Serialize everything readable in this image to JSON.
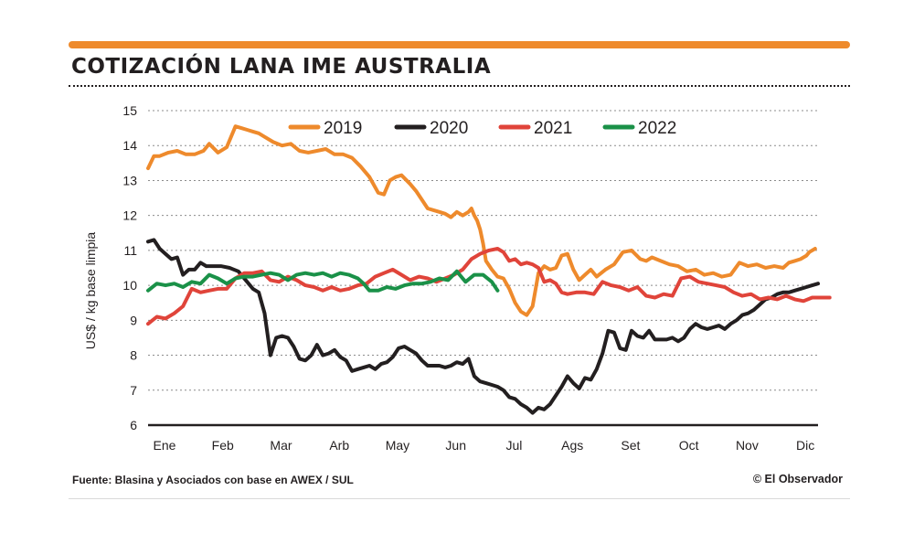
{
  "header": {
    "title": "COTIZACIÓN LANA IME AUSTRALIA",
    "accent_color": "#ee8a2c"
  },
  "footer": {
    "source": "Fuente: Blasina y Asociados con base en AWEX / SUL",
    "credit": "© El Observador"
  },
  "chart_data": {
    "type": "line",
    "title": "COTIZACIÓN LANA IME AUSTRALIA",
    "ylabel": "US$ / kg base limpia",
    "xlabel": "",
    "ylim": [
      6,
      15
    ],
    "xlim": [
      0,
      12
    ],
    "yticks": [
      6,
      7,
      8,
      9,
      10,
      11,
      12,
      13,
      14,
      15
    ],
    "grid": "horizontal dotted",
    "legend_position": "top",
    "categories": [
      "Ene",
      "Feb",
      "Mar",
      "Arb",
      "May",
      "Jun",
      "Jul",
      "Ags",
      "Set",
      "Oct",
      "Nov",
      "Dic"
    ],
    "series": [
      {
        "name": "2019",
        "color": "#ee8a2c",
        "x": [
          0.0,
          0.1,
          0.2,
          0.35,
          0.5,
          0.65,
          0.8,
          0.95,
          1.05,
          1.2,
          1.35,
          1.5,
          1.6,
          1.7,
          1.8,
          1.9,
          2.0,
          2.15,
          2.3,
          2.45,
          2.6,
          2.75,
          2.9,
          3.05,
          3.2,
          3.35,
          3.5,
          3.65,
          3.8,
          3.95,
          4.05,
          4.15,
          4.25,
          4.35,
          4.5,
          4.6,
          4.7,
          4.8,
          4.9,
          5.0,
          5.1,
          5.2,
          5.3,
          5.4,
          5.5,
          5.55,
          5.6,
          5.65,
          5.7,
          5.75,
          5.8,
          5.9,
          6.0,
          6.1,
          6.2,
          6.3,
          6.4,
          6.5,
          6.6,
          6.7,
          6.8,
          6.9,
          7.0,
          7.1,
          7.2,
          7.3,
          7.4,
          7.5,
          7.6,
          7.7,
          7.85,
          8.0,
          8.15,
          8.3,
          8.45,
          8.55,
          8.65,
          8.8,
          8.95,
          9.1,
          9.25,
          9.4,
          9.55,
          9.7,
          9.85,
          10.0,
          10.15,
          10.3,
          10.45,
          10.6,
          10.75,
          10.9,
          11.0,
          11.1,
          11.2,
          11.3,
          11.35,
          11.45
        ],
        "values": [
          13.35,
          13.7,
          13.7,
          13.8,
          13.85,
          13.75,
          13.75,
          13.85,
          14.05,
          13.8,
          13.95,
          14.55,
          14.5,
          14.45,
          14.4,
          14.35,
          14.25,
          14.1,
          14.0,
          14.05,
          13.85,
          13.8,
          13.85,
          13.9,
          13.75,
          13.75,
          13.65,
          13.4,
          13.1,
          12.65,
          12.6,
          13.0,
          13.1,
          13.15,
          12.9,
          12.7,
          12.45,
          12.2,
          12.15,
          12.1,
          12.05,
          11.95,
          12.1,
          12.0,
          12.1,
          12.2,
          12.0,
          11.85,
          11.6,
          11.2,
          10.7,
          10.45,
          10.25,
          10.2,
          9.9,
          9.5,
          9.25,
          9.15,
          9.4,
          10.35,
          10.55,
          10.45,
          10.5,
          10.85,
          10.9,
          10.45,
          10.15,
          10.3,
          10.45,
          10.25,
          10.45,
          10.6,
          10.95,
          11.0,
          10.75,
          10.7,
          10.8,
          10.7,
          10.6,
          10.55,
          10.4,
          10.45,
          10.3,
          10.35,
          10.25,
          10.3,
          10.65,
          10.55,
          10.6,
          10.5,
          10.55,
          10.5,
          10.65,
          10.7,
          10.75,
          10.85,
          10.95,
          11.05
        ]
      },
      {
        "name": "2020",
        "color": "#231f20",
        "x": [
          0.0,
          0.1,
          0.2,
          0.3,
          0.4,
          0.5,
          0.6,
          0.7,
          0.8,
          0.9,
          1.0,
          1.1,
          1.25,
          1.4,
          1.55,
          1.7,
          1.8,
          1.9,
          2.0,
          2.1,
          2.2,
          2.3,
          2.4,
          2.5,
          2.6,
          2.7,
          2.8,
          2.9,
          3.0,
          3.1,
          3.2,
          3.3,
          3.4,
          3.5,
          3.6,
          3.7,
          3.8,
          3.9,
          4.0,
          4.1,
          4.2,
          4.3,
          4.4,
          4.5,
          4.6,
          4.7,
          4.8,
          4.9,
          5.0,
          5.1,
          5.2,
          5.3,
          5.4,
          5.5,
          5.6,
          5.7,
          5.8,
          5.9,
          6.0,
          6.1,
          6.2,
          6.3,
          6.4,
          6.5,
          6.6,
          6.7,
          6.8,
          6.9,
          7.0,
          7.1,
          7.2,
          7.3,
          7.4,
          7.5,
          7.6,
          7.7,
          7.8,
          7.9,
          8.0,
          8.1,
          8.2,
          8.3,
          8.4,
          8.5,
          8.6,
          8.7,
          8.8,
          8.9,
          9.0,
          9.1,
          9.2,
          9.3,
          9.4,
          9.5,
          9.6,
          9.7,
          9.8,
          9.9,
          10.0,
          10.1,
          10.2,
          10.3,
          10.4,
          10.5,
          10.6,
          10.7,
          10.8,
          10.9,
          11.0,
          11.1,
          11.2,
          11.3,
          11.4,
          11.5
        ],
        "values": [
          11.25,
          11.3,
          11.05,
          10.9,
          10.75,
          10.8,
          10.3,
          10.45,
          10.45,
          10.65,
          10.55,
          10.55,
          10.55,
          10.5,
          10.4,
          10.1,
          9.9,
          9.8,
          9.2,
          8.0,
          8.5,
          8.55,
          8.5,
          8.25,
          7.9,
          7.85,
          8.0,
          8.3,
          8.0,
          8.05,
          8.15,
          7.95,
          7.85,
          7.55,
          7.6,
          7.65,
          7.7,
          7.6,
          7.75,
          7.8,
          7.95,
          8.2,
          8.25,
          8.15,
          8.05,
          7.85,
          7.7,
          7.7,
          7.7,
          7.65,
          7.7,
          7.8,
          7.75,
          7.9,
          7.4,
          7.25,
          7.2,
          7.15,
          7.1,
          7.0,
          6.8,
          6.75,
          6.6,
          6.5,
          6.35,
          6.5,
          6.45,
          6.6,
          6.85,
          7.1,
          7.4,
          7.2,
          7.05,
          7.35,
          7.3,
          7.6,
          8.05,
          8.7,
          8.65,
          8.2,
          8.15,
          8.7,
          8.55,
          8.5,
          8.7,
          8.45,
          8.45,
          8.45,
          8.5,
          8.4,
          8.5,
          8.75,
          8.9,
          8.8,
          8.75,
          8.8,
          8.85,
          8.75,
          8.9,
          9.0,
          9.15,
          9.2,
          9.3,
          9.45,
          9.6,
          9.65,
          9.75,
          9.8,
          9.8,
          9.85,
          9.9,
          9.95,
          10.0,
          10.05
        ]
      },
      {
        "name": "2021",
        "color": "#e0443a",
        "x": [
          0.0,
          0.15,
          0.3,
          0.45,
          0.6,
          0.75,
          0.9,
          1.05,
          1.2,
          1.35,
          1.5,
          1.65,
          1.8,
          1.95,
          2.1,
          2.25,
          2.4,
          2.55,
          2.7,
          2.85,
          3.0,
          3.15,
          3.3,
          3.45,
          3.6,
          3.75,
          3.9,
          4.05,
          4.2,
          4.35,
          4.5,
          4.65,
          4.8,
          4.95,
          5.1,
          5.25,
          5.4,
          5.55,
          5.7,
          5.85,
          6.0,
          6.1,
          6.2,
          6.3,
          6.4,
          6.5,
          6.6,
          6.7,
          6.8,
          6.9,
          7.0,
          7.1,
          7.2,
          7.35,
          7.5,
          7.65,
          7.8,
          7.95,
          8.1,
          8.25,
          8.4,
          8.55,
          8.7,
          8.85,
          9.0,
          9.15,
          9.3,
          9.45,
          9.6,
          9.75,
          9.9,
          10.05,
          10.2,
          10.35,
          10.5,
          10.65,
          10.8,
          10.95,
          11.1,
          11.25,
          11.4,
          11.55,
          11.7
        ],
        "values": [
          8.9,
          9.1,
          9.05,
          9.2,
          9.4,
          9.9,
          9.8,
          9.85,
          9.9,
          9.9,
          10.2,
          10.35,
          10.35,
          10.4,
          10.15,
          10.1,
          10.25,
          10.15,
          10.0,
          9.95,
          9.85,
          9.95,
          9.85,
          9.9,
          10.0,
          10.05,
          10.25,
          10.35,
          10.45,
          10.3,
          10.15,
          10.25,
          10.2,
          10.1,
          10.2,
          10.3,
          10.45,
          10.75,
          10.9,
          11.0,
          11.05,
          10.95,
          10.7,
          10.75,
          10.6,
          10.65,
          10.6,
          10.5,
          10.1,
          10.15,
          10.05,
          9.8,
          9.75,
          9.8,
          9.8,
          9.75,
          10.1,
          10.0,
          9.95,
          9.85,
          9.95,
          9.7,
          9.65,
          9.75,
          9.7,
          10.2,
          10.25,
          10.1,
          10.05,
          10.0,
          9.95,
          9.8,
          9.7,
          9.75,
          9.6,
          9.65,
          9.6,
          9.7,
          9.6,
          9.55,
          9.65,
          9.65,
          9.65
        ]
      },
      {
        "name": "2022",
        "color": "#1a9148",
        "x": [
          0.0,
          0.15,
          0.3,
          0.45,
          0.6,
          0.75,
          0.9,
          1.05,
          1.2,
          1.35,
          1.5,
          1.65,
          1.8,
          1.95,
          2.1,
          2.25,
          2.4,
          2.55,
          2.7,
          2.85,
          3.0,
          3.15,
          3.3,
          3.45,
          3.6,
          3.7,
          3.8,
          3.95,
          4.1,
          4.25,
          4.4,
          4.55,
          4.7,
          4.85,
          5.0,
          5.15,
          5.3,
          5.45,
          5.6,
          5.75,
          5.9,
          6.0
        ],
        "values": [
          9.85,
          10.05,
          10.0,
          10.05,
          9.95,
          10.1,
          10.05,
          10.3,
          10.2,
          10.05,
          10.2,
          10.25,
          10.25,
          10.3,
          10.35,
          10.3,
          10.15,
          10.3,
          10.35,
          10.3,
          10.35,
          10.25,
          10.35,
          10.3,
          10.2,
          10.05,
          9.85,
          9.85,
          9.95,
          9.9,
          10.0,
          10.05,
          10.05,
          10.1,
          10.2,
          10.15,
          10.4,
          10.1,
          10.3,
          10.3,
          10.1,
          9.85
        ]
      }
    ]
  }
}
